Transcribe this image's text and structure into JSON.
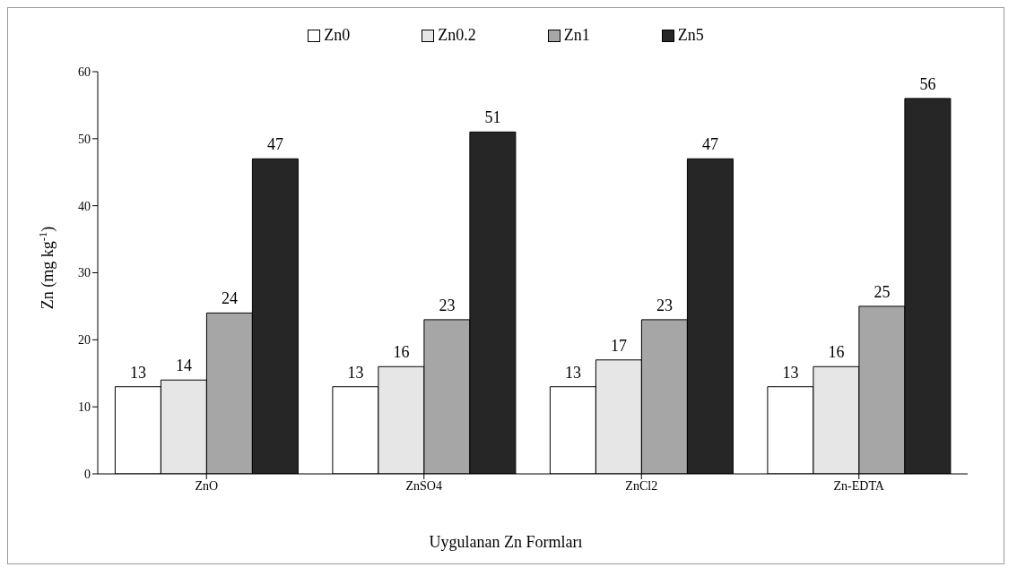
{
  "chart_data": {
    "type": "bar",
    "xlabel": "Uygulanan Zn Formları",
    "ylabel": "Zn (mg kg$^{-1}$)",
    "categories": [
      "ZnO",
      "ZnSO4",
      "ZnCl2",
      "Zn-EDTA"
    ],
    "series": [
      {
        "name": "Zn0",
        "color": "#ffffff",
        "values": [
          13,
          13,
          13,
          13
        ]
      },
      {
        "name": "Zn0.2",
        "color": "#e6e6e6",
        "values": [
          14,
          16,
          17,
          16
        ]
      },
      {
        "name": "Zn1",
        "color": "#a6a6a6",
        "values": [
          24,
          23,
          23,
          25
        ]
      },
      {
        "name": "Zn5",
        "color": "#262626",
        "values": [
          47,
          51,
          47,
          56
        ]
      }
    ],
    "ylim": [
      0,
      60
    ],
    "yticks": [
      0,
      10,
      20,
      30,
      40,
      50,
      60
    ],
    "grid": false,
    "legend": "top",
    "data_labels": true
  }
}
